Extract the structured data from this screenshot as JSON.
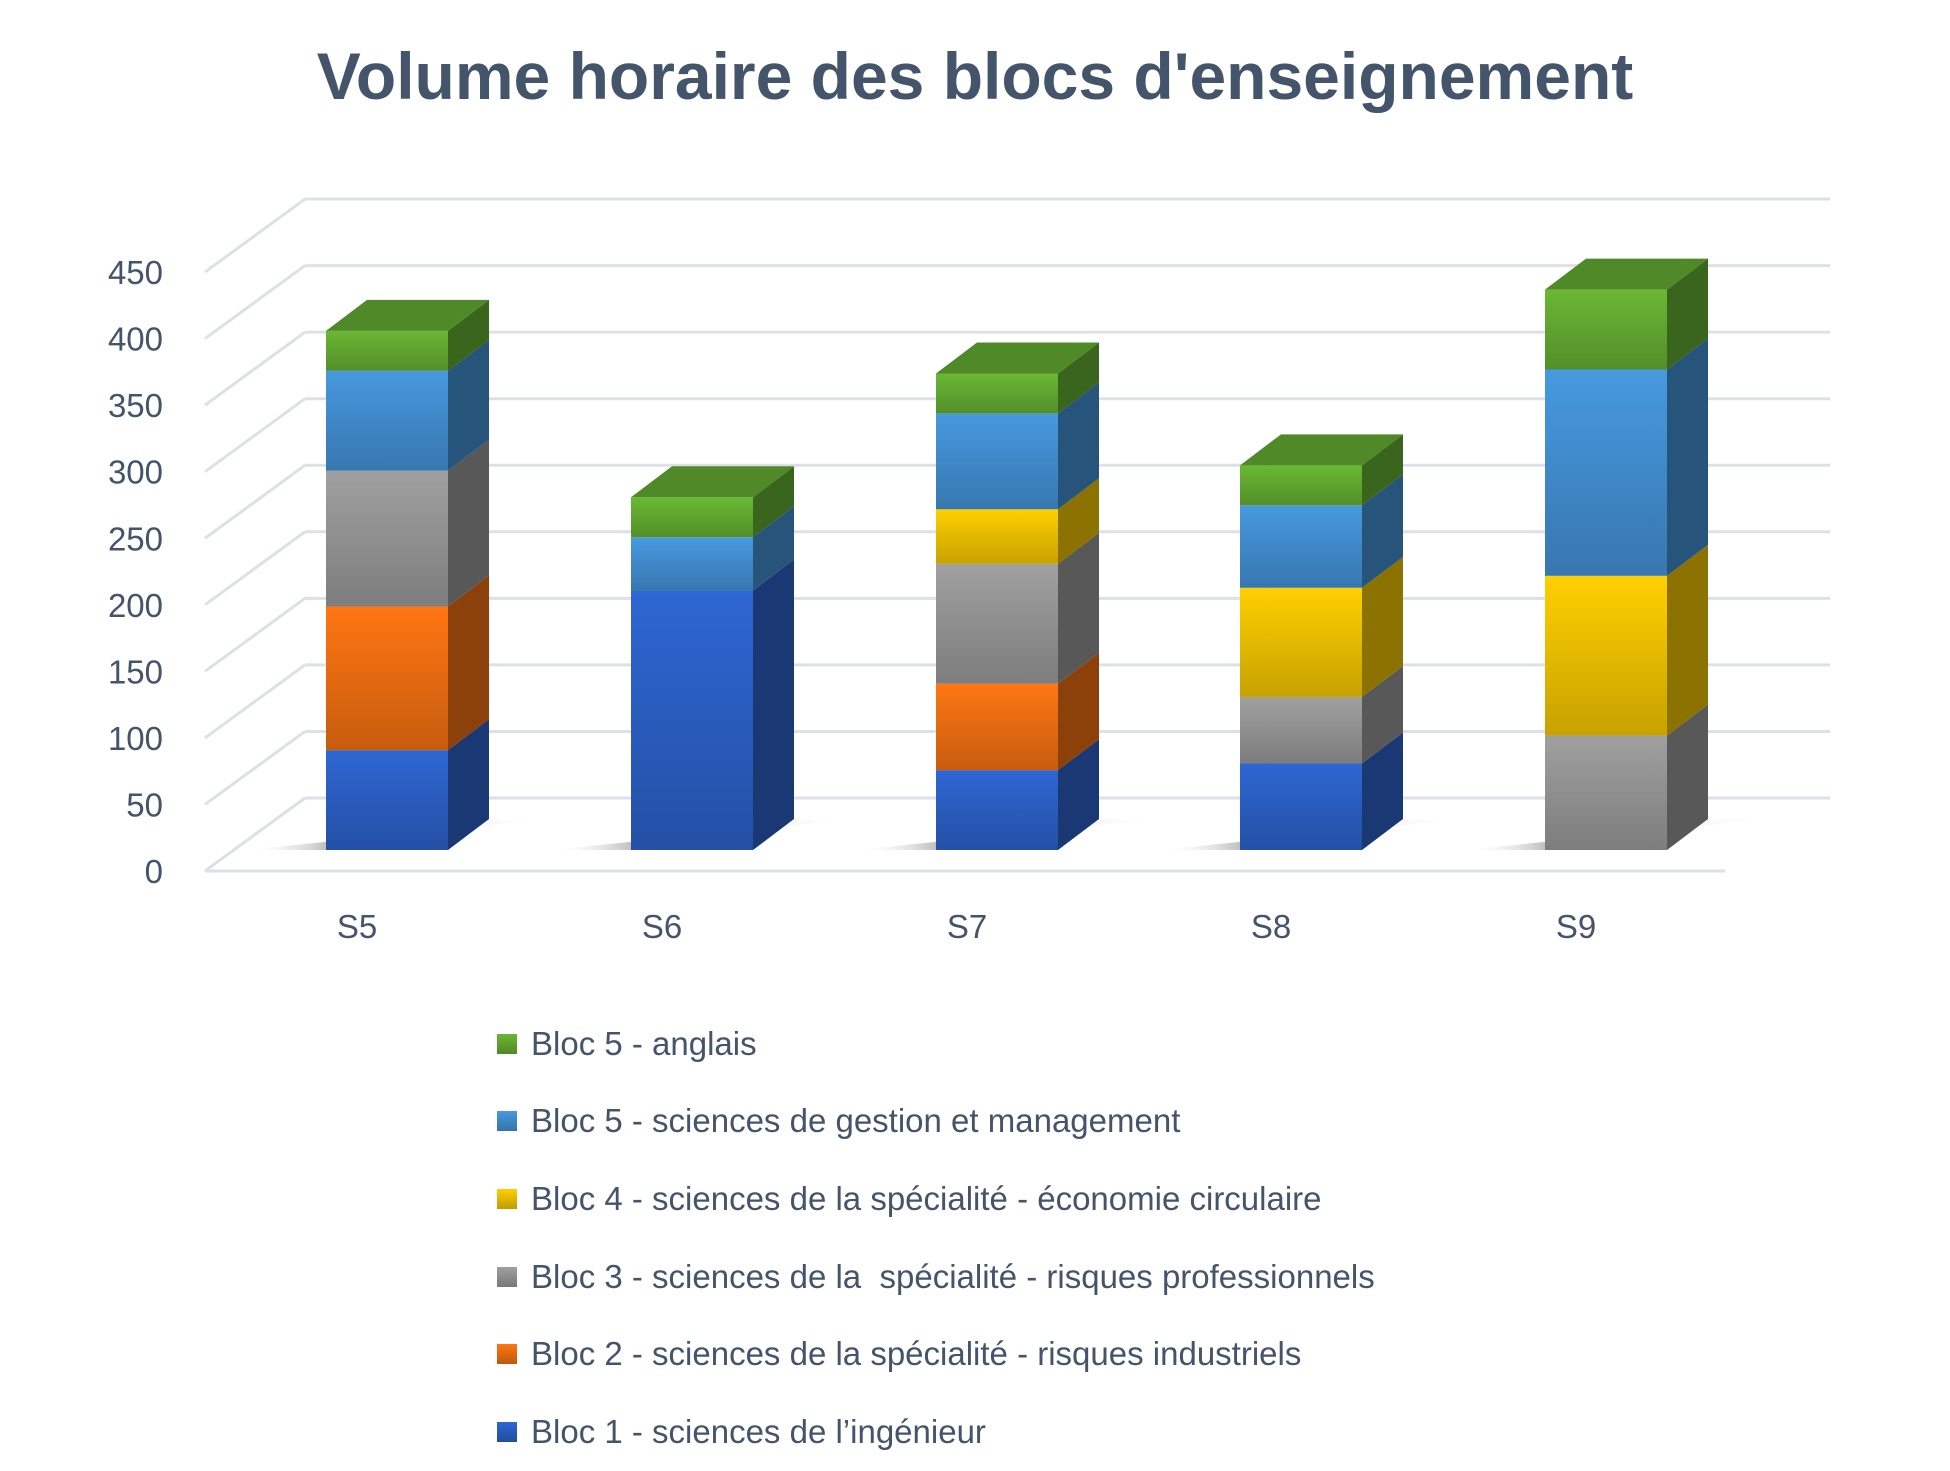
{
  "chart_data": {
    "type": "bar",
    "stacked": true,
    "three_d": true,
    "title": "Volume horaire des blocs d'enseignement",
    "xlabel": "",
    "ylabel": "",
    "categories": [
      "S5",
      "S6",
      "S7",
      "S8",
      "S9"
    ],
    "ylim": [
      0,
      450
    ],
    "yticks": [
      0,
      50,
      100,
      150,
      200,
      250,
      300,
      350,
      400,
      450
    ],
    "grid": true,
    "legend_position": "bottom",
    "series": [
      {
        "name": "Bloc 1 - sciences de l’ingénieur",
        "color": "#2e66d3",
        "values": [
          75,
          195,
          60,
          65,
          0
        ]
      },
      {
        "name": "Bloc 2 - sciences de la spécialité - risques industriels",
        "color": "#ff7612",
        "values": [
          108,
          0,
          65,
          0,
          0
        ]
      },
      {
        "name": "Bloc 3 - sciences de la  spécialité - risques professionnels",
        "color": "#a0a0a0",
        "values": [
          102,
          0,
          90,
          50,
          86
        ]
      },
      {
        "name": "Bloc 4 - sciences de la spécialité - économie circulaire",
        "color": "#ffd000",
        "values": [
          0,
          0,
          41,
          82,
          120
        ]
      },
      {
        "name": "Bloc 5 - sciences de gestion et management",
        "color": "#4799e0",
        "values": [
          75,
          40,
          72,
          62,
          155
        ]
      },
      {
        "name": "Bloc 5 - anglais",
        "color": "#6ab734",
        "values": [
          30,
          30,
          30,
          30,
          60
        ]
      }
    ]
  }
}
